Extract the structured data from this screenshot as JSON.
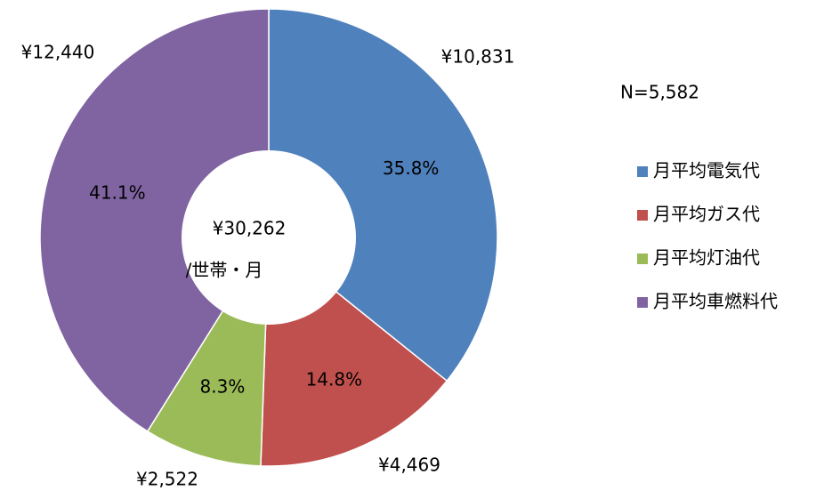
{
  "chart_data": {
    "type": "pie",
    "categories": [
      "月平均電気代",
      "月平均ガス代",
      "月平均灯油代",
      "月平均車燃料代"
    ],
    "values": [
      10831,
      4469,
      2522,
      12440
    ],
    "value_labels": [
      "¥10,831",
      "¥4,469",
      "¥2,522",
      "¥12,440"
    ],
    "percentages": [
      35.8,
      14.8,
      8.3,
      41.1
    ],
    "percentage_labels": [
      "35.8%",
      "14.8%",
      "8.3%",
      "41.1%"
    ],
    "colors": [
      "#4f81bd",
      "#c0504d",
      "#9bbb59",
      "#8064a2"
    ],
    "center_label": "¥30,262",
    "center_sublabel": "/世帯・月",
    "annotation": "N=5,582",
    "legend": "right"
  }
}
